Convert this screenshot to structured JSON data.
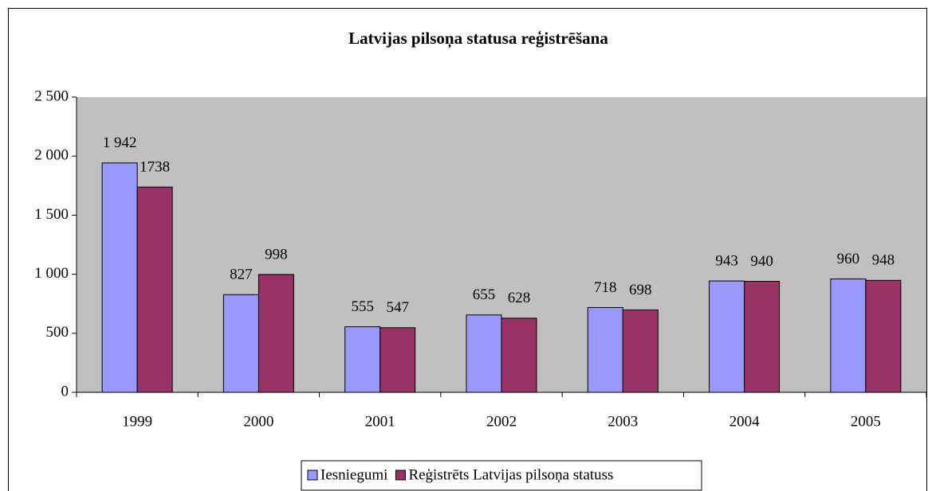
{
  "chart_data": {
    "type": "bar",
    "title": "Latvijas pilsoņa statusa reģistrēšana",
    "categories": [
      "1999",
      "2000",
      "2001",
      "2002",
      "2003",
      "2004",
      "2005"
    ],
    "series": [
      {
        "name": "Iesniegumi",
        "color": "#9999ff",
        "values": [
          1942,
          827,
          555,
          655,
          718,
          943,
          960
        ],
        "value_labels": [
          "1 942",
          "827",
          "555",
          "655",
          "718",
          "943",
          "960"
        ]
      },
      {
        "name": "Reģistrēts Latvijas pilsoņa statuss",
        "color": "#993366",
        "values": [
          1738,
          998,
          547,
          628,
          698,
          940,
          948
        ]
      }
    ],
    "ylim": [
      0,
      2500
    ],
    "yticks": [
      0,
      500,
      {
        "value": 1000,
        "label": "1 000"
      },
      {
        "value": 1500,
        "label": "1 500"
      },
      {
        "value": 2000,
        "label": "2 000"
      },
      {
        "value": 2500,
        "label": "2 500"
      }
    ],
    "plot_background": "#c0c0c0",
    "grid": false,
    "legend": "bottom"
  }
}
